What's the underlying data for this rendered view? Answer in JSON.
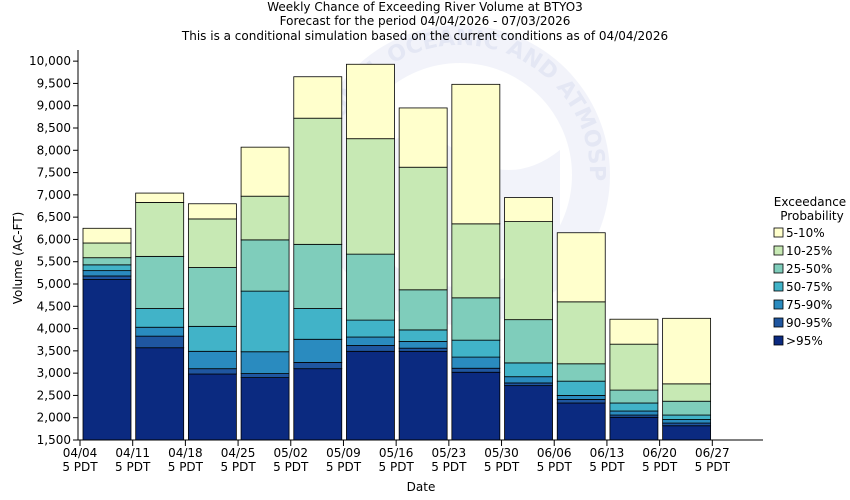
{
  "chart_data": {
    "type": "bar",
    "stacked": true,
    "title_lines": [
      "Weekly Chance of Exceeding River Volume at BTYO3",
      "Forecast for the period 04/04/2026 - 07/03/2026",
      "This is a conditional simulation based on the current conditions as of 04/04/2026"
    ],
    "xlabel": "Date",
    "ylabel": "Volume (AC-FT)",
    "ylim": [
      1500,
      10250
    ],
    "yticks": [
      1500,
      2000,
      2500,
      3000,
      3500,
      4000,
      4500,
      5000,
      5500,
      6000,
      6500,
      7000,
      7500,
      8000,
      8500,
      9000,
      9500,
      10000
    ],
    "ytick_labels": [
      "1,500",
      "2,000",
      "2,500",
      "3,000",
      "3,500",
      "4,000",
      "4,500",
      "5,000",
      "5,500",
      "6,000",
      "6,500",
      "7,000",
      "7,500",
      "8,000",
      "8,500",
      "9,000",
      "9,500",
      "10,000"
    ],
    "x_ticks": [
      {
        "date": "04/04",
        "time": "5 PDT"
      },
      {
        "date": "04/11",
        "time": "5 PDT"
      },
      {
        "date": "04/18",
        "time": "5 PDT"
      },
      {
        "date": "04/25",
        "time": "5 PDT"
      },
      {
        "date": "05/02",
        "time": "5 PDT"
      },
      {
        "date": "05/09",
        "time": "5 PDT"
      },
      {
        "date": "05/16",
        "time": "5 PDT"
      },
      {
        "date": "05/23",
        "time": "5 PDT"
      },
      {
        "date": "05/30",
        "time": "5 PDT"
      },
      {
        "date": "06/06",
        "time": "5 PDT"
      },
      {
        "date": "06/13",
        "time": "5 PDT"
      },
      {
        "date": "06/20",
        "time": "5 PDT"
      },
      {
        "date": "06/27",
        "time": "5 PDT"
      }
    ],
    "levels": [
      ">95%",
      "90-95%",
      "75-90%",
      "50-75%",
      "25-50%",
      "10-25%",
      "5-10%"
    ],
    "colors": [
      "#0b2a80",
      "#1f56a0",
      "#2a8bbf",
      "#41b3c8",
      "#7fcdbb",
      "#c7e9b4",
      "#ffffcc"
    ],
    "weeks": [
      {
        "x": "04/04",
        "bounds": [
          5100,
          5180,
          5300,
          5430,
          5590,
          5920,
          6250
        ]
      },
      {
        "x": "04/11",
        "bounds": [
          3570,
          3830,
          4030,
          4450,
          5620,
          6830,
          7040
        ]
      },
      {
        "x": "04/18",
        "bounds": [
          2980,
          3100,
          3490,
          4050,
          5370,
          6460,
          6800
        ]
      },
      {
        "x": "04/25",
        "bounds": [
          2900,
          2990,
          3480,
          4840,
          5990,
          6970,
          8070
        ]
      },
      {
        "x": "05/02",
        "bounds": [
          3100,
          3240,
          3760,
          4450,
          5890,
          8720,
          9650
        ]
      },
      {
        "x": "05/09",
        "bounds": [
          3490,
          3620,
          3810,
          4190,
          5670,
          8260,
          9930
        ]
      },
      {
        "x": "05/16",
        "bounds": [
          3490,
          3560,
          3710,
          3970,
          4870,
          7620,
          8950
        ]
      },
      {
        "x": "05/23",
        "bounds": [
          3020,
          3110,
          3360,
          3740,
          4690,
          6350,
          9480
        ]
      },
      {
        "x": "05/30",
        "bounds": [
          2720,
          2780,
          2920,
          3230,
          4200,
          6400,
          6940
        ]
      },
      {
        "x": "06/06",
        "bounds": [
          2330,
          2410,
          2500,
          2820,
          3210,
          4600,
          6150
        ]
      },
      {
        "x": "06/13",
        "bounds": [
          2010,
          2060,
          2150,
          2330,
          2620,
          3650,
          4210
        ]
      },
      {
        "x": "06/20",
        "bounds": [
          1820,
          1880,
          1960,
          2060,
          2370,
          2760,
          4230
        ]
      }
    ],
    "legend": {
      "title_lines": [
        "Exceedance",
        "Probability"
      ],
      "items": [
        "5-10%",
        "10-25%",
        "25-50%",
        "50-75%",
        "75-90%",
        "90-95%",
        ">95%"
      ],
      "colors": [
        "#ffffcc",
        "#c7e9b4",
        "#7fcdbb",
        "#41b3c8",
        "#2a8bbf",
        "#1f56a0",
        "#0b2a80"
      ],
      "placement": "right"
    },
    "watermark_text": "NATIONAL OCEANIC AND ATMOSPHERIC ADMINISTRATION"
  }
}
